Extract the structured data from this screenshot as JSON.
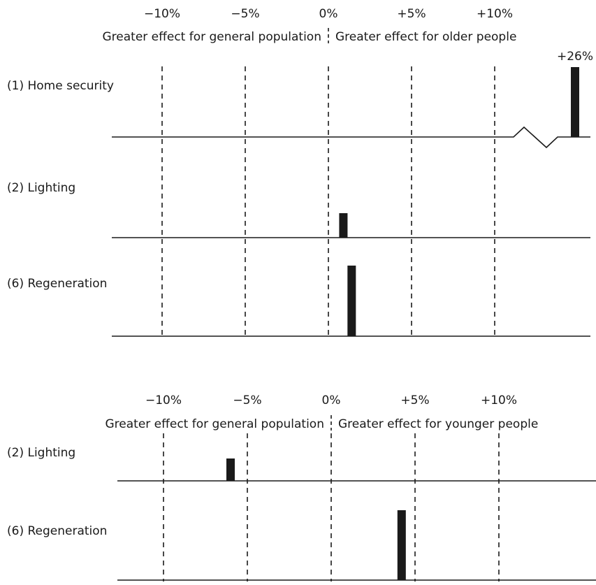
{
  "chart_data": [
    {
      "type": "bar",
      "orientation": "horizontal-rows",
      "x_ticks": [
        "−10%",
        "−5%",
        "0%",
        "+5%",
        "+10%"
      ],
      "x_tick_values": [
        -10,
        -5,
        0,
        5,
        10
      ],
      "left_header": "Greater effect for general population",
      "right_header": "Greater effect for older people",
      "categories": [
        "(1) Home security",
        "(2) Lighting",
        "(6) Regeneration"
      ],
      "values": [
        26,
        0.9,
        1.4
      ],
      "data_labels": [
        "+26%",
        "",
        ""
      ],
      "axis_break": true,
      "grid": "dashed vertical lines at tick values",
      "colors": {
        "bar": "#1a1a1a",
        "axis": "#1a1a1a",
        "grid": "#1a1a1a"
      }
    },
    {
      "type": "bar",
      "orientation": "horizontal-rows",
      "x_ticks": [
        "−10%",
        "−5%",
        "0%",
        "+5%",
        "+10%"
      ],
      "x_tick_values": [
        -10,
        -5,
        0,
        5,
        10
      ],
      "left_header": "Greater effect for general population",
      "right_header": "Greater effect for younger people",
      "categories": [
        "(2) Lighting",
        "(6) Regeneration"
      ],
      "values": [
        -6,
        4.2
      ],
      "data_labels": [
        "",
        ""
      ],
      "axis_break": false,
      "grid": "dashed vertical lines at tick values",
      "colors": {
        "bar": "#1a1a1a",
        "axis": "#1a1a1a",
        "grid": "#1a1a1a"
      }
    }
  ]
}
